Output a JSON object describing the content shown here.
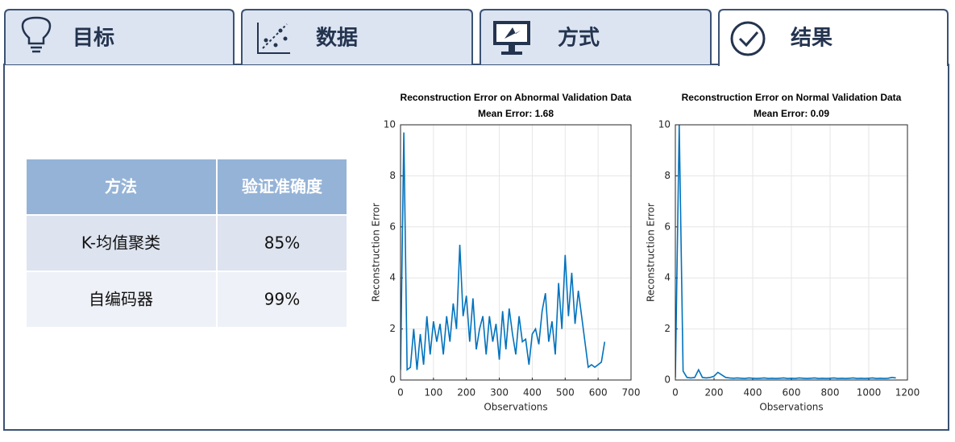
{
  "tabs": [
    "目标",
    "数据",
    "方式",
    "结果"
  ],
  "table": {
    "header": [
      "方法",
      "验证准确度"
    ],
    "rows": [
      [
        "K-均值聚类",
        "85%"
      ],
      [
        "自编码器",
        "99%"
      ]
    ]
  },
  "chart_data": [
    {
      "type": "line",
      "title": "Reconstruction Error on Abnormal Validation Data",
      "subtitle": "Mean Error: 1.68",
      "xlabel": "Observations",
      "ylabel": "Reconstruction Error",
      "color": "#0072bd",
      "grid": true,
      "x": [
        0,
        10,
        20,
        30,
        40,
        50,
        60,
        70,
        80,
        90,
        100,
        110,
        120,
        130,
        140,
        150,
        160,
        170,
        180,
        190,
        200,
        210,
        220,
        230,
        240,
        250,
        260,
        270,
        280,
        290,
        300,
        310,
        320,
        330,
        340,
        350,
        360,
        370,
        380,
        390,
        400,
        410,
        420,
        430,
        440,
        450,
        460,
        470,
        480,
        490,
        500,
        510,
        520,
        530,
        540,
        550,
        560,
        570,
        580,
        590,
        600,
        610,
        620
      ],
      "values": [
        0.4,
        9.7,
        0.4,
        0.5,
        2.0,
        0.4,
        1.8,
        0.6,
        2.5,
        1.0,
        2.3,
        1.5,
        2.2,
        1.0,
        2.5,
        1.5,
        3.0,
        2.0,
        5.3,
        2.5,
        3.3,
        1.5,
        3.2,
        1.2,
        2.0,
        2.5,
        1.0,
        2.5,
        1.5,
        2.2,
        0.8,
        2.7,
        1.2,
        2.8,
        1.8,
        1.0,
        2.5,
        1.5,
        1.6,
        0.6,
        1.8,
        2.0,
        1.4,
        2.7,
        3.4,
        1.5,
        2.3,
        1.0,
        3.8,
        2.0,
        4.9,
        2.5,
        4.2,
        2.2,
        3.5,
        2.5,
        1.5,
        0.5,
        0.6,
        0.5,
        0.6,
        0.7,
        1.5
      ],
      "xlim": [
        0,
        700
      ],
      "xticks": [
        0,
        100,
        200,
        300,
        400,
        500,
        600,
        700
      ],
      "ylim": [
        0,
        10
      ],
      "yticks": [
        0,
        2,
        4,
        6,
        8,
        10
      ]
    },
    {
      "type": "line",
      "title": "Reconstruction Error on Normal Validation Data",
      "subtitle": "Mean Error: 0.09",
      "xlabel": "Observations",
      "ylabel": "Reconstruction Error",
      "color": "#0072bd",
      "grid": true,
      "x": [
        0,
        20,
        40,
        60,
        80,
        100,
        120,
        140,
        160,
        180,
        200,
        220,
        240,
        260,
        280,
        300,
        320,
        340,
        360,
        380,
        400,
        420,
        440,
        460,
        480,
        500,
        520,
        540,
        560,
        580,
        600,
        620,
        640,
        660,
        680,
        700,
        720,
        740,
        760,
        780,
        800,
        820,
        840,
        860,
        880,
        900,
        920,
        940,
        960,
        980,
        1000,
        1020,
        1040,
        1060,
        1080,
        1100,
        1120,
        1140
      ],
      "values": [
        0.1,
        10,
        0.35,
        0.1,
        0.08,
        0.1,
        0.4,
        0.1,
        0.08,
        0.1,
        0.15,
        0.3,
        0.2,
        0.1,
        0.08,
        0.07,
        0.08,
        0.07,
        0.06,
        0.08,
        0.07,
        0.06,
        0.07,
        0.08,
        0.06,
        0.07,
        0.06,
        0.07,
        0.08,
        0.06,
        0.07,
        0.06,
        0.08,
        0.07,
        0.06,
        0.07,
        0.08,
        0.06,
        0.07,
        0.06,
        0.07,
        0.08,
        0.06,
        0.07,
        0.06,
        0.07,
        0.08,
        0.06,
        0.07,
        0.06,
        0.07,
        0.08,
        0.06,
        0.07,
        0.06,
        0.07,
        0.1,
        0.08
      ],
      "xlim": [
        0,
        1200
      ],
      "xticks": [
        0,
        200,
        400,
        600,
        800,
        1000,
        1200
      ],
      "ylim": [
        0,
        10
      ],
      "yticks": [
        0,
        2,
        4,
        6,
        8,
        10
      ]
    }
  ]
}
